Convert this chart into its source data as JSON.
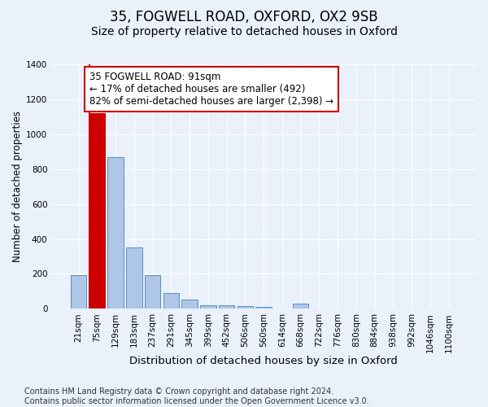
{
  "title1": "35, FOGWELL ROAD, OXFORD, OX2 9SB",
  "title2": "Size of property relative to detached houses in Oxford",
  "xlabel": "Distribution of detached houses by size in Oxford",
  "ylabel": "Number of detached properties",
  "categories": [
    "21sqm",
    "75sqm",
    "129sqm",
    "183sqm",
    "237sqm",
    "291sqm",
    "345sqm",
    "399sqm",
    "452sqm",
    "506sqm",
    "560sqm",
    "614sqm",
    "668sqm",
    "722sqm",
    "776sqm",
    "830sqm",
    "884sqm",
    "938sqm",
    "992sqm",
    "1046sqm",
    "1100sqm"
  ],
  "values": [
    192,
    1120,
    870,
    350,
    192,
    92,
    55,
    22,
    18,
    15,
    12,
    0,
    28,
    0,
    0,
    0,
    0,
    0,
    0,
    0,
    0
  ],
  "bar_color": "#aec6e8",
  "bar_edge_color": "#5a8fc0",
  "highlight_bar_index": 1,
  "highlight_color": "#cc0000",
  "highlight_edge_color": "#cc0000",
  "annotation_text": "35 FOGWELL ROAD: 91sqm\n← 17% of detached houses are smaller (492)\n82% of semi-detached houses are larger (2,398) →",
  "annotation_box_color": "white",
  "annotation_box_edge_color": "#cc0000",
  "ylim": [
    0,
    1400
  ],
  "yticks": [
    0,
    200,
    400,
    600,
    800,
    1000,
    1200,
    1400
  ],
  "bg_color": "#eaf1fb",
  "plot_bg_color": "#eaf1fb",
  "grid_color": "white",
  "footer_text": "Contains HM Land Registry data © Crown copyright and database right 2024.\nContains public sector information licensed under the Open Government Licence v3.0.",
  "title1_fontsize": 12,
  "title2_fontsize": 10,
  "xlabel_fontsize": 9.5,
  "ylabel_fontsize": 8.5,
  "tick_fontsize": 7.5,
  "annotation_fontsize": 8.5,
  "footer_fontsize": 7
}
